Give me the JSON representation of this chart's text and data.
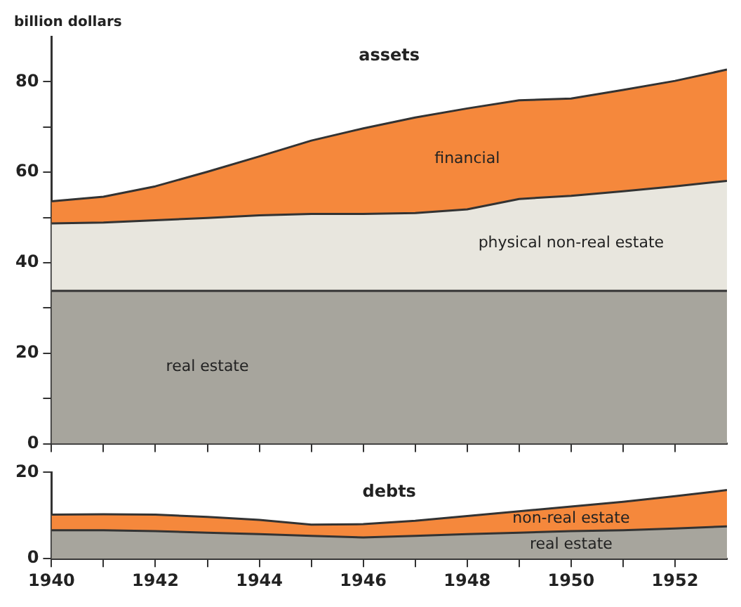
{
  "chart_data": [
    {
      "type": "area",
      "title": "assets",
      "ylabel": "billion dollars",
      "stacked": true,
      "legend": false,
      "grid": false,
      "tick_labels": "y",
      "x": [
        1940,
        1941,
        1942,
        1943,
        1944,
        1945,
        1946,
        1947,
        1948,
        1949,
        1950,
        1951,
        1952,
        1953
      ],
      "series": [
        {
          "name": "real estate",
          "color": "#a7a59d",
          "values": [
            33.8,
            33.8,
            33.8,
            33.8,
            33.8,
            33.8,
            33.8,
            33.8,
            33.8,
            33.8,
            33.8,
            33.8,
            33.8,
            33.8
          ]
        },
        {
          "name": "physical non-real estate",
          "color": "#e8e6de",
          "values": [
            14.9,
            15.1,
            15.6,
            16.1,
            16.7,
            17,
            17,
            17.2,
            18,
            20.3,
            21,
            22,
            23.1,
            24.3
          ]
        },
        {
          "name": "financial",
          "color": "#f5883c",
          "values": [
            4.9,
            5.7,
            7.5,
            10.2,
            13,
            16.2,
            18.9,
            21.1,
            22.3,
            21.8,
            21.5,
            22.4,
            23.3,
            24.6
          ]
        }
      ],
      "xlim": [
        1940,
        1953
      ],
      "xticks": [
        {
          "value": 1940,
          "label": null
        },
        {
          "value": 1941,
          "label": null
        },
        {
          "value": 1942,
          "label": null
        },
        {
          "value": 1943,
          "label": null
        },
        {
          "value": 1944,
          "label": null
        },
        {
          "value": 1945,
          "label": null
        },
        {
          "value": 1946,
          "label": null
        },
        {
          "value": 1947,
          "label": null
        },
        {
          "value": 1948,
          "label": null
        },
        {
          "value": 1949,
          "label": null
        },
        {
          "value": 1950,
          "label": null
        },
        {
          "value": 1951,
          "label": null
        },
        {
          "value": 1952,
          "label": null
        }
      ],
      "ylim": [
        0,
        90
      ],
      "yticks": [
        0,
        {
          "value": 10,
          "label": null
        },
        20,
        {
          "value": 30,
          "label": null
        },
        40,
        {
          "value": 50,
          "label": null
        },
        60,
        {
          "value": 70,
          "label": null
        },
        80
      ]
    },
    {
      "type": "area",
      "title": "debts",
      "stacked": true,
      "legend": false,
      "grid": false,
      "x": [
        1940,
        1941,
        1942,
        1943,
        1944,
        1945,
        1946,
        1947,
        1948,
        1949,
        1950,
        1951,
        1952,
        1953
      ],
      "series": [
        {
          "name": "real estate",
          "color": "#a7a59d",
          "values": [
            6.6,
            6.6,
            6.4,
            6,
            5.7,
            5.3,
            4.9,
            5.3,
            5.7,
            6,
            6.4,
            6.6,
            7,
            7.5
          ]
        },
        {
          "name": "non-real estate",
          "color": "#f5883c",
          "values": [
            3.6,
            3.7,
            3.8,
            3.7,
            3.3,
            2.6,
            3.1,
            3.5,
            4.2,
            5,
            5.7,
            6.6,
            7.5,
            8.4
          ]
        }
      ],
      "xlim": [
        1940,
        1953
      ],
      "xticks": [
        1940,
        {
          "value": 1941,
          "label": null
        },
        1942,
        {
          "value": 1943,
          "label": null
        },
        1944,
        {
          "value": 1945,
          "label": null
        },
        1946,
        {
          "value": 1947,
          "label": null
        },
        1948,
        {
          "value": 1949,
          "label": null
        },
        1950,
        {
          "value": 1951,
          "label": null
        },
        1952
      ],
      "ylim": [
        0,
        20
      ],
      "yticks": [
        0,
        20
      ]
    }
  ]
}
